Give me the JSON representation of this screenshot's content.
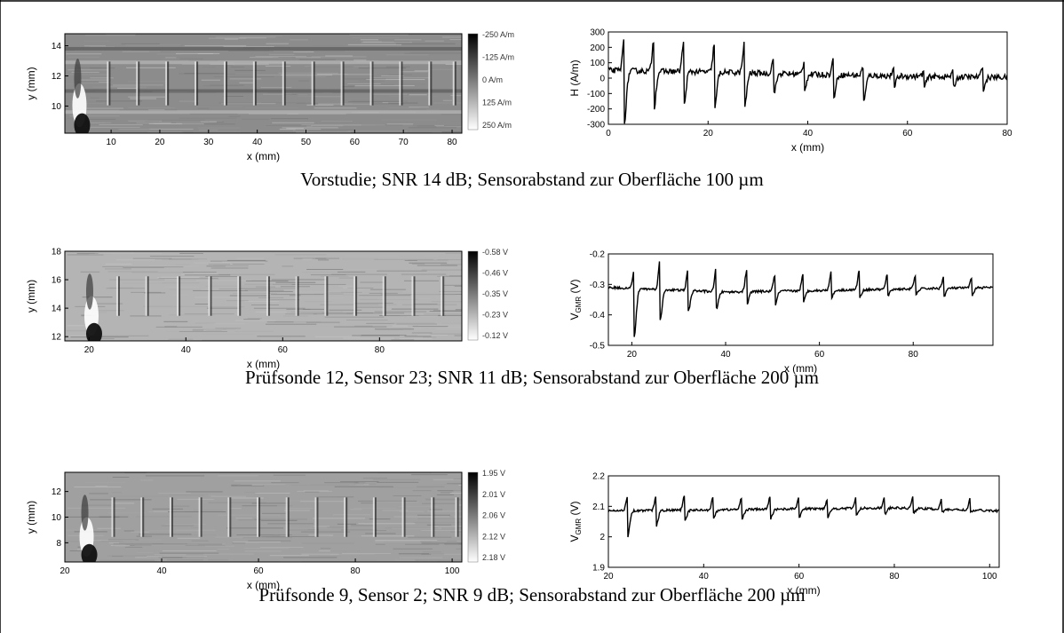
{
  "captions": [
    "Vorstudie; SNR 14 dB; Sensorabstand zur Oberfläche 100 µm",
    "Prüfsonde 12, Sensor 23; SNR 11 dB; Sensorabstand zur Oberfläche 200 µm",
    "Prüfsonde 9, Sensor 2; SNR 9 dB; Sensorabstand zur Oberfläche 200 µm"
  ],
  "chart_data": [
    {
      "type": "heatmap",
      "xlabel": "x (mm)",
      "ylabel": "y (mm)",
      "xlim": [
        0.5,
        82
      ],
      "ylim": [
        8.2,
        14.8
      ],
      "xticks": [
        10,
        20,
        30,
        40,
        50,
        60,
        70,
        80
      ],
      "yticks": [
        10,
        12,
        14
      ],
      "colorbar": {
        "min": -250,
        "max": 250,
        "unit": "A/m",
        "labels": [
          "-250 A/m",
          "-125 A/m",
          "0 A/m",
          "125 A/m",
          "250 A/m"
        ]
      },
      "bands_y": [
        9.6,
        11.0,
        12.9,
        13.8
      ],
      "defects_x": [
        3.5,
        9.5,
        15.5,
        21.5,
        27.5,
        33.5,
        39.5,
        45.5,
        51.5,
        57.5,
        63.5,
        69.5,
        75.5,
        80.5
      ],
      "bg": "#8c8c8c"
    },
    {
      "type": "line",
      "xlabel": "x (mm)",
      "ylabel": "H (A/m)",
      "xlim": [
        0,
        80
      ],
      "ylim": [
        -300,
        300
      ],
      "xticks": [
        0,
        20,
        40,
        60,
        80
      ],
      "yticks": [
        -300,
        -200,
        -100,
        0,
        100,
        200,
        300
      ],
      "baseline": [
        [
          0,
          50
        ],
        [
          20,
          40
        ],
        [
          40,
          25
        ],
        [
          60,
          12
        ],
        [
          80,
          5
        ]
      ],
      "peaks": [
        {
          "x": 3.2,
          "up": 270,
          "down": -280
        },
        {
          "x": 9.1,
          "up": 245,
          "down": -205
        },
        {
          "x": 15.1,
          "up": 230,
          "down": -190
        },
        {
          "x": 21.3,
          "up": 230,
          "down": -200
        },
        {
          "x": 27.3,
          "up": 230,
          "down": -195
        },
        {
          "x": 33.2,
          "up": 150,
          "down": -100
        },
        {
          "x": 39.3,
          "up": 100,
          "down": -70
        },
        {
          "x": 45.2,
          "up": 130,
          "down": -120
        },
        {
          "x": 51.2,
          "up": 80,
          "down": -150
        },
        {
          "x": 57.3,
          "up": 50,
          "down": -50
        },
        {
          "x": 63.3,
          "up": 40,
          "down": -60
        },
        {
          "x": 69.2,
          "up": 40,
          "down": -55
        },
        {
          "x": 75.2,
          "up": 85,
          "down": -70
        }
      ]
    },
    {
      "type": "heatmap",
      "xlabel": "x (mm)",
      "ylabel": "y (mm)",
      "xlim": [
        15,
        97
      ],
      "ylim": [
        11.7,
        18
      ],
      "xticks": [
        20,
        40,
        60,
        80
      ],
      "yticks": [
        12,
        14,
        16,
        18
      ],
      "colorbar": {
        "min": -0.58,
        "max": -0.12,
        "unit": "V",
        "labels": [
          "-0.58 V",
          "-0.46 V",
          "-0.35 V",
          "-0.23 V",
          "-0.12 V"
        ]
      },
      "defects_x": [
        20.5,
        26,
        32,
        38.5,
        45,
        51,
        57,
        63,
        69,
        75,
        81,
        87,
        93
      ],
      "bg": "#b4b4b4"
    },
    {
      "type": "line",
      "xlabel": "x (mm)",
      "ylabel": "V_GMR (V)",
      "xlim": [
        15,
        97
      ],
      "ylim": [
        -0.5,
        -0.2
      ],
      "xticks": [
        20,
        40,
        60,
        80
      ],
      "yticks": [
        -0.5,
        -0.4,
        -0.3,
        -0.2
      ],
      "baseline": [
        [
          15,
          -0.31
        ],
        [
          40,
          -0.325
        ],
        [
          60,
          -0.32
        ],
        [
          97,
          -0.31
        ]
      ],
      "peaks": [
        {
          "x": 20.5,
          "up": -0.255,
          "down": -0.47
        },
        {
          "x": 26.0,
          "up": -0.22,
          "down": -0.42
        },
        {
          "x": 32.0,
          "up": -0.25,
          "down": -0.39
        },
        {
          "x": 38.0,
          "up": -0.245,
          "down": -0.38
        },
        {
          "x": 44.5,
          "up": -0.255,
          "down": -0.365
        },
        {
          "x": 50.5,
          "up": -0.27,
          "down": -0.37
        },
        {
          "x": 56.5,
          "up": -0.27,
          "down": -0.36
        },
        {
          "x": 62.5,
          "up": -0.26,
          "down": -0.345
        },
        {
          "x": 68.5,
          "up": -0.255,
          "down": -0.345
        },
        {
          "x": 74.5,
          "up": -0.265,
          "down": -0.34
        },
        {
          "x": 80.5,
          "up": -0.27,
          "down": -0.335
        },
        {
          "x": 86.5,
          "up": -0.275,
          "down": -0.34
        },
        {
          "x": 92.5,
          "up": -0.28,
          "down": -0.335
        }
      ]
    },
    {
      "type": "heatmap",
      "xlabel": "x (mm)",
      "ylabel": "y (mm)",
      "xlim": [
        20,
        102
      ],
      "ylim": [
        6.5,
        13.5
      ],
      "xticks": [
        20,
        40,
        60,
        80,
        100
      ],
      "yticks": [
        8,
        10,
        12
      ],
      "colorbar": {
        "min": 1.95,
        "max": 2.18,
        "unit": "V",
        "labels": [
          "1.95 V",
          "2.01 V",
          "2.06 V",
          "2.12 V",
          "2.18 V"
        ]
      },
      "defects_x": [
        24.5,
        30,
        36,
        42,
        48,
        54,
        60,
        66,
        72,
        78,
        84,
        90,
        96,
        101
      ],
      "bg": "#a0a0a0"
    },
    {
      "type": "line",
      "xlabel": "x (mm)",
      "ylabel": "V_GMR (V)",
      "xlim": [
        20,
        102
      ],
      "ylim": [
        1.9,
        2.2
      ],
      "xticks": [
        20,
        40,
        60,
        80,
        100
      ],
      "yticks": [
        1.9,
        2.0,
        2.1,
        2.2
      ],
      "baseline": [
        [
          20,
          2.085
        ],
        [
          50,
          2.09
        ],
        [
          80,
          2.095
        ],
        [
          102,
          2.085
        ]
      ],
      "peaks": [
        {
          "x": 24.0,
          "up": 2.13,
          "down": 2.0
        },
        {
          "x": 30.0,
          "up": 2.13,
          "down": 2.035
        },
        {
          "x": 36.0,
          "up": 2.135,
          "down": 2.05
        },
        {
          "x": 42.0,
          "up": 2.13,
          "down": 2.06
        },
        {
          "x": 48.0,
          "up": 2.13,
          "down": 2.06
        },
        {
          "x": 54.0,
          "up": 2.135,
          "down": 2.06
        },
        {
          "x": 60.0,
          "up": 2.13,
          "down": 2.065
        },
        {
          "x": 66.0,
          "up": 2.125,
          "down": 2.065
        },
        {
          "x": 72.0,
          "up": 2.13,
          "down": 2.07
        },
        {
          "x": 78.0,
          "up": 2.13,
          "down": 2.075
        },
        {
          "x": 84.0,
          "up": 2.135,
          "down": 2.08
        },
        {
          "x": 90.0,
          "up": 2.13,
          "down": 2.08
        },
        {
          "x": 96.0,
          "up": 2.13,
          "down": 2.08
        }
      ]
    }
  ]
}
